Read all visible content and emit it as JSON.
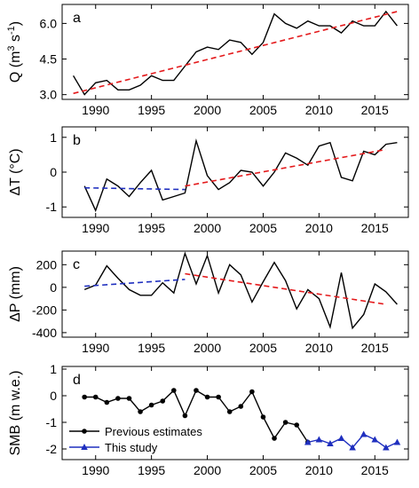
{
  "chart_data": [
    {
      "type": "line",
      "panel_label": "a",
      "ylabel": "Q (m³ s⁻¹)",
      "ylabel_parts": {
        "main": "Q (m",
        "sup1": "3",
        "mid": " s",
        "sup2": "-1",
        "end": ")"
      },
      "ylim": [
        2.8,
        6.8
      ],
      "yticks": [
        3.0,
        4.5,
        6.0
      ],
      "ytick_labels": [
        "3.0",
        "4.5",
        "6.0"
      ],
      "xlim": [
        1987,
        2018
      ],
      "xticks": [
        1990,
        1995,
        2000,
        2005,
        2010,
        2015
      ],
      "xtick_labels": [
        "1990",
        "1995",
        "2000",
        "2005",
        "2010",
        "2015"
      ],
      "series": [
        {
          "role": "observed",
          "color": "#000000",
          "style": "solid",
          "x": [
            1988,
            1989,
            1990,
            1991,
            1992,
            1993,
            1994,
            1995,
            1996,
            1997,
            1998,
            1999,
            2000,
            2001,
            2002,
            2003,
            2004,
            2005,
            2006,
            2007,
            2008,
            2009,
            2010,
            2011,
            2012,
            2013,
            2014,
            2015,
            2016,
            2017
          ],
          "y": [
            3.8,
            3.0,
            3.5,
            3.6,
            3.2,
            3.2,
            3.4,
            3.8,
            3.6,
            3.6,
            4.2,
            4.8,
            5.0,
            4.9,
            5.3,
            5.2,
            4.7,
            5.2,
            6.4,
            6.0,
            5.8,
            6.1,
            5.9,
            5.9,
            5.6,
            6.1,
            5.9,
            5.9,
            6.5,
            5.9
          ]
        },
        {
          "role": "trend",
          "color": "#e41a1c",
          "style": "dashed",
          "x": [
            1988,
            2017
          ],
          "y": [
            3.05,
            6.5
          ]
        }
      ]
    },
    {
      "type": "line",
      "panel_label": "b",
      "ylabel": "ΔT (°C)",
      "ylim": [
        -1.3,
        1.3
      ],
      "yticks": [
        -1,
        0,
        1
      ],
      "ytick_labels": [
        "-1",
        "0",
        "1"
      ],
      "xlim": [
        1987,
        2018
      ],
      "xticks": [
        1990,
        1995,
        2000,
        2005,
        2010,
        2015
      ],
      "xtick_labels": [
        "1990",
        "1995",
        "2000",
        "2005",
        "2010",
        "2015"
      ],
      "series": [
        {
          "role": "observed",
          "color": "#000000",
          "style": "solid",
          "x": [
            1989,
            1990,
            1991,
            1992,
            1993,
            1994,
            1995,
            1996,
            1997,
            1998,
            1999,
            2000,
            2001,
            2002,
            2003,
            2004,
            2005,
            2006,
            2007,
            2008,
            2009,
            2010,
            2011,
            2012,
            2013,
            2014,
            2015,
            2016,
            2017
          ],
          "y": [
            -0.4,
            -1.1,
            -0.2,
            -0.4,
            -0.7,
            -0.3,
            0.05,
            -0.8,
            -0.7,
            -0.6,
            0.9,
            -0.1,
            -0.5,
            -0.3,
            0.05,
            0.0,
            -0.4,
            0.0,
            0.55,
            0.4,
            0.2,
            0.75,
            0.85,
            -0.15,
            -0.25,
            0.6,
            0.5,
            0.8,
            0.85
          ]
        },
        {
          "role": "trend-early",
          "color": "#1f2fbf",
          "style": "dashed",
          "x": [
            1989,
            1998
          ],
          "y": [
            -0.45,
            -0.5
          ]
        },
        {
          "role": "trend-late",
          "color": "#e41a1c",
          "style": "dashed",
          "x": [
            1998,
            2016
          ],
          "y": [
            -0.4,
            0.65
          ]
        }
      ]
    },
    {
      "type": "line",
      "panel_label": "c",
      "ylabel": "ΔP (mm)",
      "ylim": [
        -440,
        320
      ],
      "yticks": [
        -400,
        -200,
        0,
        200
      ],
      "ytick_labels": [
        "-400",
        "-200",
        "0",
        "200"
      ],
      "xlim": [
        1987,
        2018
      ],
      "xticks": [
        1990,
        1995,
        2000,
        2005,
        2010,
        2015
      ],
      "xtick_labels": [
        "1990",
        "1995",
        "2000",
        "2005",
        "2010",
        "2015"
      ],
      "series": [
        {
          "role": "observed",
          "color": "#000000",
          "style": "solid",
          "x": [
            1989,
            1990,
            1991,
            1992,
            1993,
            1994,
            1995,
            1996,
            1997,
            1998,
            1999,
            2000,
            2001,
            2002,
            2003,
            2004,
            2005,
            2006,
            2007,
            2008,
            2009,
            2010,
            2011,
            2012,
            2013,
            2014,
            2015,
            2016,
            2017
          ],
          "y": [
            -20,
            20,
            190,
            80,
            -20,
            -70,
            -70,
            40,
            -50,
            300,
            30,
            280,
            -50,
            200,
            110,
            -130,
            50,
            220,
            60,
            -190,
            -20,
            -100,
            -350,
            130,
            -360,
            -240,
            30,
            -40,
            -150
          ]
        },
        {
          "role": "trend-early",
          "color": "#1f2fbf",
          "style": "dashed",
          "x": [
            1989,
            1998
          ],
          "y": [
            10,
            70
          ]
        },
        {
          "role": "trend-late",
          "color": "#e41a1c",
          "style": "dashed",
          "x": [
            1998,
            2016
          ],
          "y": [
            120,
            -150
          ]
        }
      ]
    },
    {
      "type": "line",
      "panel_label": "d",
      "ylabel": "SMB (m w.e.)",
      "ylim": [
        -2.4,
        1.1
      ],
      "yticks": [
        -2,
        -1,
        0,
        1
      ],
      "ytick_labels": [
        "-2",
        "-1",
        "0",
        "1"
      ],
      "xlim": [
        1987,
        2018
      ],
      "xticks": [
        1990,
        1995,
        2000,
        2005,
        2010,
        2015
      ],
      "xtick_labels": [
        "1990",
        "1995",
        "2000",
        "2005",
        "2010",
        "2015"
      ],
      "legend": "bottom-left",
      "series": [
        {
          "name": "Previous estimates",
          "color": "#000000",
          "marker": "circle",
          "style": "solid",
          "x": [
            1989,
            1990,
            1991,
            1992,
            1993,
            1994,
            1995,
            1996,
            1997,
            1998,
            1999,
            2000,
            2001,
            2002,
            2003,
            2004,
            2005,
            2006,
            2007,
            2008,
            2009
          ],
          "y": [
            -0.05,
            -0.05,
            -0.25,
            -0.1,
            -0.1,
            -0.6,
            -0.35,
            -0.2,
            0.2,
            -0.75,
            0.2,
            -0.05,
            -0.05,
            -0.6,
            -0.4,
            0.15,
            -0.8,
            -1.6,
            -1.0,
            -1.1,
            -1.75
          ]
        },
        {
          "name": "This study",
          "color": "#1f2fbf",
          "marker": "triangle",
          "style": "solid",
          "x": [
            2009,
            2010,
            2011,
            2012,
            2013,
            2014,
            2015,
            2016,
            2017
          ],
          "y": [
            -1.75,
            -1.65,
            -1.8,
            -1.6,
            -1.95,
            -1.45,
            -1.65,
            -1.95,
            -1.75
          ]
        }
      ]
    }
  ]
}
